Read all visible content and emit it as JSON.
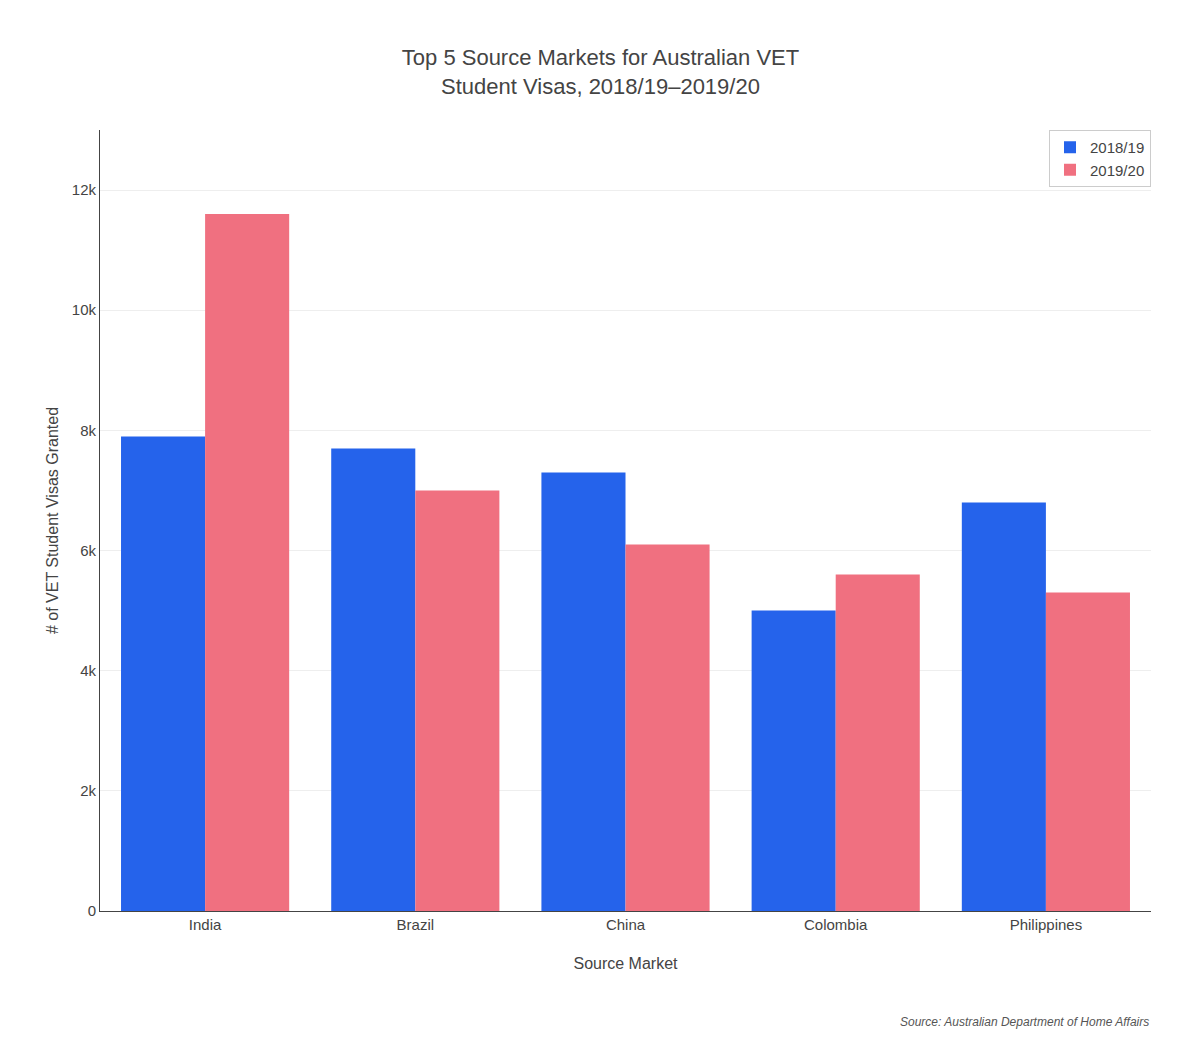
{
  "chart_data": {
    "type": "bar",
    "title": "Top 5 Source Markets for Australian VET\nStudent Visas, 2018/19–2019/20",
    "categories": [
      "India",
      "Brazil",
      "China",
      "Colombia",
      "Philippines"
    ],
    "series": [
      {
        "name": "2018/19",
        "color": "#2563EB",
        "values": [
          7900,
          7700,
          7300,
          5000,
          6800
        ]
      },
      {
        "name": "2019/20",
        "color": "#F07080",
        "values": [
          11600,
          7000,
          6100,
          5600,
          5300
        ]
      }
    ],
    "xlabel": "Source Market",
    "ylabel": "# of VET Student Visas Granted",
    "ylim": [
      0,
      13000
    ],
    "yticks": [
      0,
      {
        "value": 2000,
        "label": "2k"
      },
      {
        "value": 4000,
        "label": "4k"
      },
      {
        "value": 6000,
        "label": "6k"
      },
      {
        "value": 8000,
        "label": "8k"
      },
      {
        "value": 10000,
        "label": "10k"
      },
      {
        "value": 12000,
        "label": "12k"
      }
    ],
    "grid": true,
    "legend": "upper right",
    "annotations": [
      "Source: Australian Department of Home Affairs"
    ]
  }
}
